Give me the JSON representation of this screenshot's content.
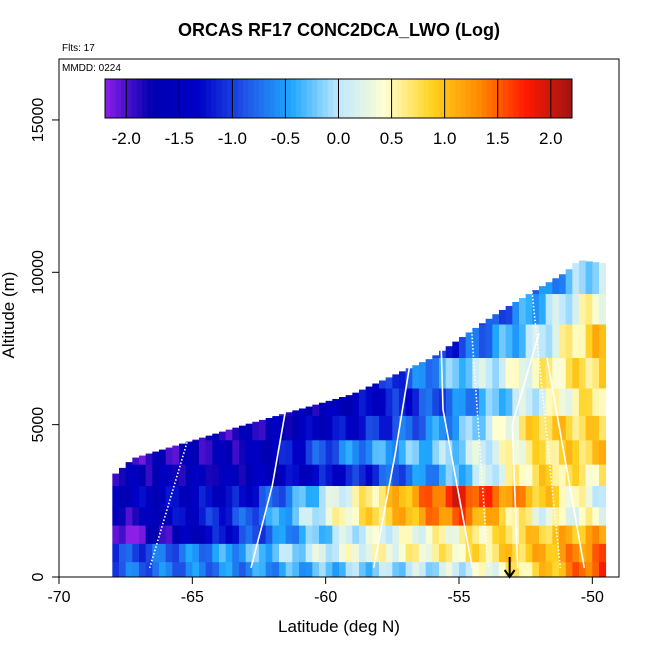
{
  "chart_data": {
    "type": "heatmap",
    "title": "ORCAS RF17 CONC2DCA_LWO (Log)",
    "flights_note": "Flts: 17",
    "date_note": "MMDD: 0224",
    "xlabel": "Latitude (deg N)",
    "ylabel": "Altitude (m)",
    "xlim": [
      -70,
      -49
    ],
    "ylim": [
      0,
      17000
    ],
    "x_ticks": [
      -70,
      -65,
      -60,
      -55,
      -50
    ],
    "y_ticks": [
      0,
      5000,
      10000,
      15000
    ],
    "colorbar": {
      "range": [
        -2.2,
        2.2
      ],
      "ticks": [
        "-2.0",
        "-1.5",
        "-1.0",
        "-0.5",
        "0.0",
        "0.5",
        "1.0",
        "1.5",
        "2.0"
      ],
      "tick_values": [
        -2.0,
        -1.5,
        -1.0,
        -0.5,
        0.0,
        0.5,
        1.0,
        1.5,
        2.0
      ],
      "colors": [
        "#8c1fe8",
        "#0000b0",
        "#0000c8",
        "#1f55e8",
        "#1fa8ff",
        "#bfe8ff",
        "#ffffd0",
        "#ffd21f",
        "#ff8c00",
        "#ff1a00",
        "#a01414"
      ]
    },
    "data_envelope": {
      "lat": [
        -68.0,
        -67.2,
        -63.0,
        -59.0,
        -56.0,
        -53.5,
        -51.0,
        -50.5,
        -49.6
      ],
      "top_altitude_m": [
        3300,
        3900,
        5000,
        6000,
        7200,
        8700,
        10000,
        10400,
        10300
      ]
    },
    "bands": [
      {
        "alt_m": [
          0,
          500
        ],
        "values_by_lat": [
          [
            -67.5,
            -0.8
          ],
          [
            -63,
            -0.6
          ],
          [
            -59,
            -0.2
          ],
          [
            -55,
            0.1
          ],
          [
            -52,
            0.8
          ],
          [
            -50,
            1.6
          ]
        ]
      },
      {
        "alt_m": [
          500,
          1100
        ],
        "values_by_lat": [
          [
            -67.5,
            -1.0
          ],
          [
            -63,
            -0.4
          ],
          [
            -59,
            0.3
          ],
          [
            -55,
            0.6
          ],
          [
            -52,
            1.0
          ],
          [
            -50,
            1.4
          ]
        ]
      },
      {
        "alt_m": [
          1100,
          1700
        ],
        "values_by_lat": [
          [
            -67.5,
            -2.2
          ],
          [
            -63,
            -1.0
          ],
          [
            -59,
            0.1
          ],
          [
            -55,
            0.5
          ],
          [
            -52,
            0.9
          ],
          [
            -50,
            1.1
          ]
        ]
      },
      {
        "alt_m": [
          1700,
          2300
        ],
        "values_by_lat": [
          [
            -67.5,
            -1.8
          ],
          [
            -63,
            -0.9
          ],
          [
            -59,
            0.6
          ],
          [
            -55,
            1.5
          ],
          [
            -52,
            0.3
          ],
          [
            -50,
            0.4
          ]
        ]
      },
      {
        "alt_m": [
          2300,
          3000
        ],
        "values_by_lat": [
          [
            -67.5,
            -1.5
          ],
          [
            -63,
            -1.3
          ],
          [
            -59,
            0.4
          ],
          [
            -55,
            1.8
          ],
          [
            -52,
            1.0
          ],
          [
            -50,
            0.2
          ]
        ]
      },
      {
        "alt_m": [
          3000,
          3700
        ],
        "values_by_lat": [
          [
            -67.5,
            -1.7
          ],
          [
            -63,
            -1.6
          ],
          [
            -59,
            -1.2
          ],
          [
            -55,
            -0.3
          ],
          [
            -52,
            0.8
          ],
          [
            -50,
            0.6
          ]
        ]
      },
      {
        "alt_m": [
          3700,
          4500
        ],
        "values_by_lat": [
          [
            -67.5,
            -1.9
          ],
          [
            -63,
            -1.7
          ],
          [
            -59,
            -0.6
          ],
          [
            -55,
            -0.1
          ],
          [
            -52,
            0.7
          ],
          [
            -50,
            0.9
          ]
        ]
      },
      {
        "alt_m": [
          4500,
          5300
        ],
        "values_by_lat": [
          [
            -67.5,
            -1.9
          ],
          [
            -63,
            -1.8
          ],
          [
            -59,
            -1.3
          ],
          [
            -55,
            -0.4
          ],
          [
            -52,
            0.9
          ],
          [
            -50,
            0.8
          ]
        ]
      },
      {
        "alt_m": [
          5300,
          6200
        ],
        "values_by_lat": [
          [
            -67.5,
            -1.9
          ],
          [
            -63,
            -1.9
          ],
          [
            -59,
            -1.5
          ],
          [
            -55,
            -0.7
          ],
          [
            -52,
            0.2
          ],
          [
            -50,
            0.7
          ]
        ]
      },
      {
        "alt_m": [
          6200,
          7200
        ],
        "values_by_lat": [
          [
            -67.5,
            -1.9
          ],
          [
            -63,
            -1.9
          ],
          [
            -59,
            -1.6
          ],
          [
            -55,
            -0.2
          ],
          [
            -52,
            0.5
          ],
          [
            -50,
            0.8
          ]
        ]
      },
      {
        "alt_m": [
          7200,
          8300
        ],
        "values_by_lat": [
          [
            -67.5,
            -1.9
          ],
          [
            -63,
            -1.9
          ],
          [
            -59,
            -1.8
          ],
          [
            -55,
            -1.0
          ],
          [
            -52,
            0.0
          ],
          [
            -50,
            0.9
          ]
        ]
      },
      {
        "alt_m": [
          8300,
          9300
        ],
        "values_by_lat": [
          [
            -67.5,
            -1.9
          ],
          [
            -63,
            -1.9
          ],
          [
            -59,
            -1.8
          ],
          [
            -55,
            -1.5
          ],
          [
            -52,
            -0.3
          ],
          [
            -50,
            0.5
          ]
        ]
      },
      {
        "alt_m": [
          9300,
          10500
        ],
        "values_by_lat": [
          [
            -67.5,
            -1.9
          ],
          [
            -63,
            -1.9
          ],
          [
            -59,
            -1.9
          ],
          [
            -55,
            -1.6
          ],
          [
            -52,
            -0.8
          ],
          [
            -50,
            0.0
          ]
        ]
      }
    ],
    "flight_track": [
      {
        "segment": "dotted",
        "points": [
          [
            -66.6,
            300
          ],
          [
            -65.0,
            5000
          ]
        ]
      },
      {
        "segment": "solid",
        "points": [
          [
            -62.8,
            300
          ],
          [
            -62.0,
            3000
          ],
          [
            -61.5,
            5500
          ]
        ]
      },
      {
        "segment": "dotted",
        "points": [
          [
            -61.7,
            5500
          ],
          [
            -59.6,
            6500
          ]
        ]
      },
      {
        "segment": "solid",
        "points": [
          [
            -58.2,
            300
          ],
          [
            -57.4,
            4000
          ],
          [
            -56.8,
            7200
          ]
        ]
      },
      {
        "segment": "solid",
        "points": [
          [
            -54.5,
            300
          ],
          [
            -55.6,
            5500
          ],
          [
            -55.7,
            8600
          ]
        ]
      },
      {
        "segment": "dotted",
        "points": [
          [
            -54.6,
            9000
          ],
          [
            -53.9,
            300
          ]
        ]
      },
      {
        "segment": "solid",
        "points": [
          [
            -52.8,
            300
          ],
          [
            -53.0,
            5000
          ],
          [
            -52.0,
            8000
          ]
        ]
      },
      {
        "segment": "dotted",
        "points": [
          [
            -52.3,
            9700
          ],
          [
            -51.2,
            300
          ]
        ]
      },
      {
        "segment": "solid",
        "points": [
          [
            -51.7,
            7200
          ],
          [
            -50.3,
            300
          ]
        ]
      }
    ],
    "marker": {
      "lat": -53.1,
      "label": "arrow-down"
    }
  }
}
